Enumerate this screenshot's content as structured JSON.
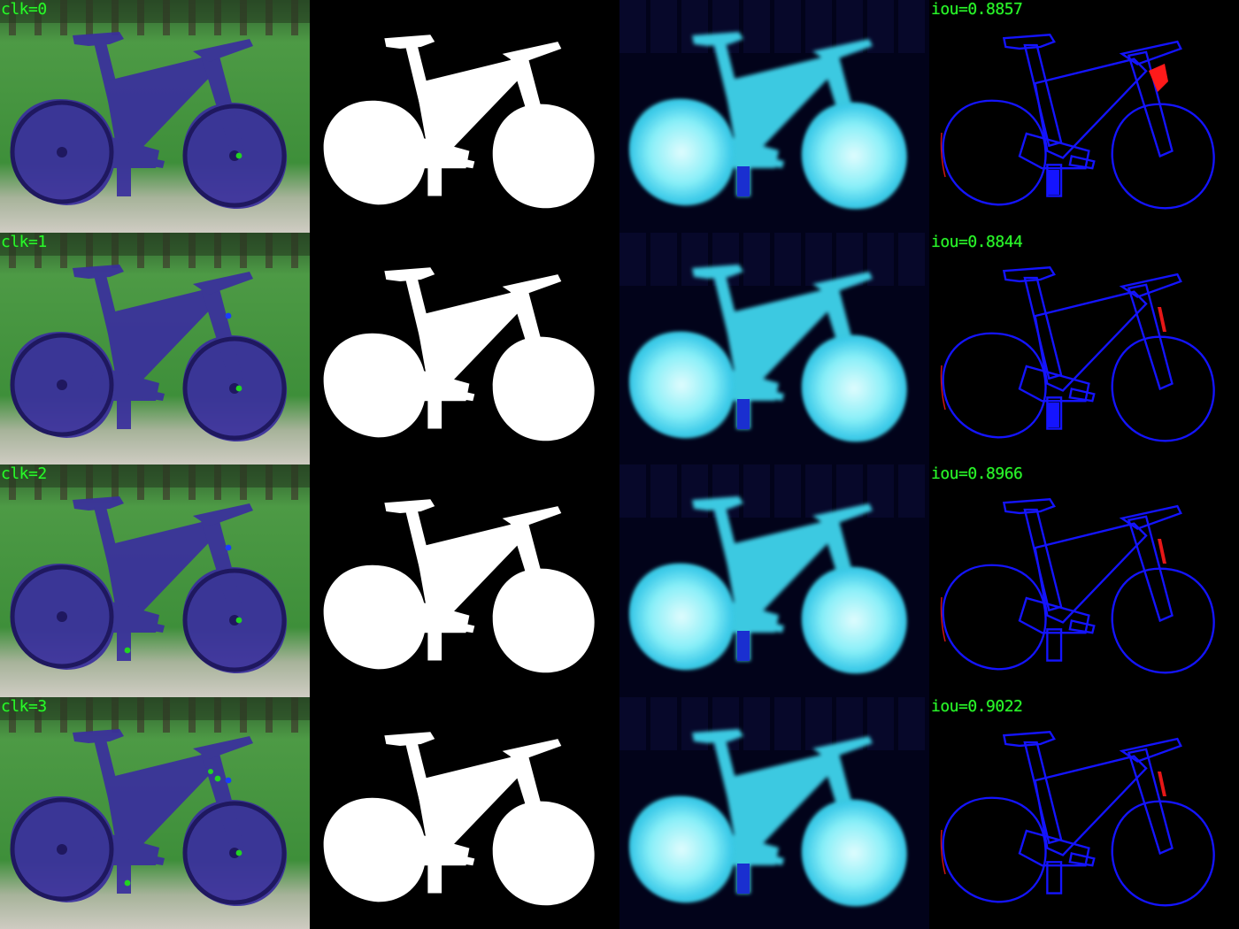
{
  "rows": [
    {
      "click_label": "clk=0",
      "iou_label": "iou=0.8857",
      "clicks": [
        {
          "type": "positive"
        }
      ]
    },
    {
      "click_label": "clk=1",
      "iou_label": "iou=0.8844",
      "clicks": [
        {
          "type": "positive"
        },
        {
          "type": "negative"
        }
      ]
    },
    {
      "click_label": "clk=2",
      "iou_label": "iou=0.8966",
      "clicks": [
        {
          "type": "positive"
        },
        {
          "type": "negative"
        },
        {
          "type": "positive"
        }
      ]
    },
    {
      "click_label": "clk=3",
      "iou_label": "iou=0.9022",
      "clicks": [
        {
          "type": "positive"
        },
        {
          "type": "negative"
        },
        {
          "type": "positive"
        },
        {
          "type": "positive"
        }
      ]
    }
  ],
  "colors": {
    "label_text": "#2cf52c",
    "positive_click": "#22d322",
    "negative_click": "#1a3cff",
    "mask_fill": "#ffffff",
    "overlay_tint": "#3a2f9e",
    "prob_glow": "#9ff7ff",
    "error_false_negative": "#1414ff",
    "error_false_positive": "#ff1a1a",
    "grass": "#3e8a3a",
    "gravel": "#c9c6bd"
  },
  "columns": [
    "image-with-clicks",
    "predicted-mask",
    "probability-map",
    "error-map"
  ]
}
